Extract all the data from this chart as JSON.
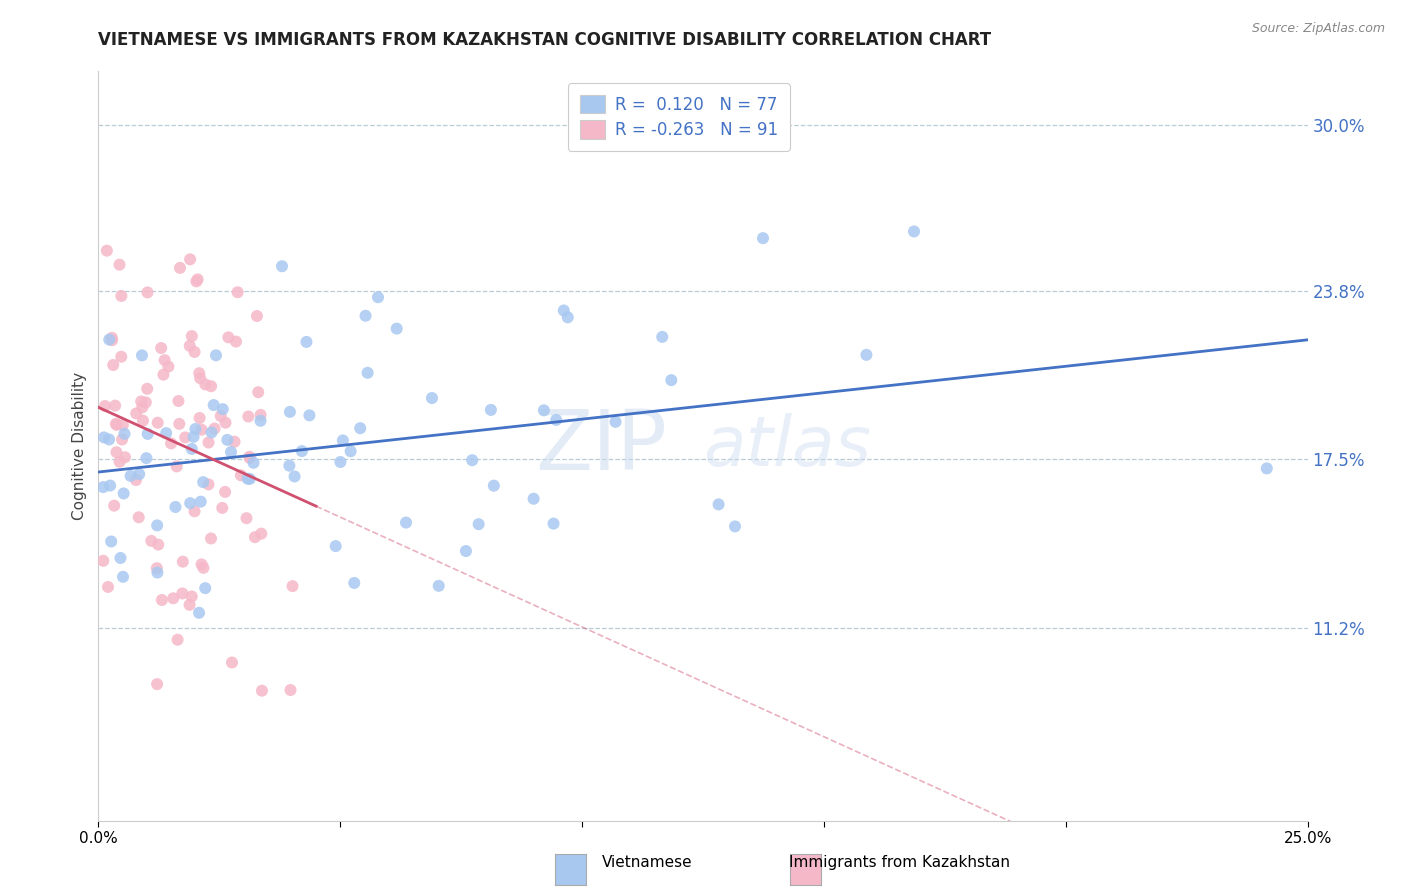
{
  "title": "VIETNAMESE VS IMMIGRANTS FROM KAZAKHSTAN COGNITIVE DISABILITY CORRELATION CHART",
  "source": "Source: ZipAtlas.com",
  "ylabel": "Cognitive Disability",
  "watermark_line1": "ZIP",
  "watermark_line2": "atlas",
  "r_vietnamese": 0.12,
  "n_vietnamese": 77,
  "r_kazakhstan": -0.263,
  "n_kazakhstan": 91,
  "xlim": [
    0.0,
    0.25
  ],
  "ylim": [
    0.04,
    0.32
  ],
  "yticks": [
    0.112,
    0.175,
    0.238,
    0.3
  ],
  "ytick_labels": [
    "11.2%",
    "17.5%",
    "23.8%",
    "30.0%"
  ],
  "xticks": [
    0.0,
    0.05,
    0.1,
    0.15,
    0.2,
    0.25
  ],
  "xtick_labels": [
    "0.0%",
    "",
    "",
    "",
    "",
    "25.0%"
  ],
  "color_vietnamese": "#a8c8f0",
  "color_kazakhstan": "#f5b8c8",
  "line_color_vietnamese": "#4472c4",
  "line_color_kazakhstan": "#d05070",
  "legend_label_vietnamese": "Vietnamese",
  "legend_label_kazakhstan": "Immigrants from Kazakhstan",
  "grid_color": "#b8ccd8",
  "background_color": "#ffffff",
  "right_axis_color": "#4472c4",
  "title_color": "#222222",
  "axis_label_color": "#444444"
}
